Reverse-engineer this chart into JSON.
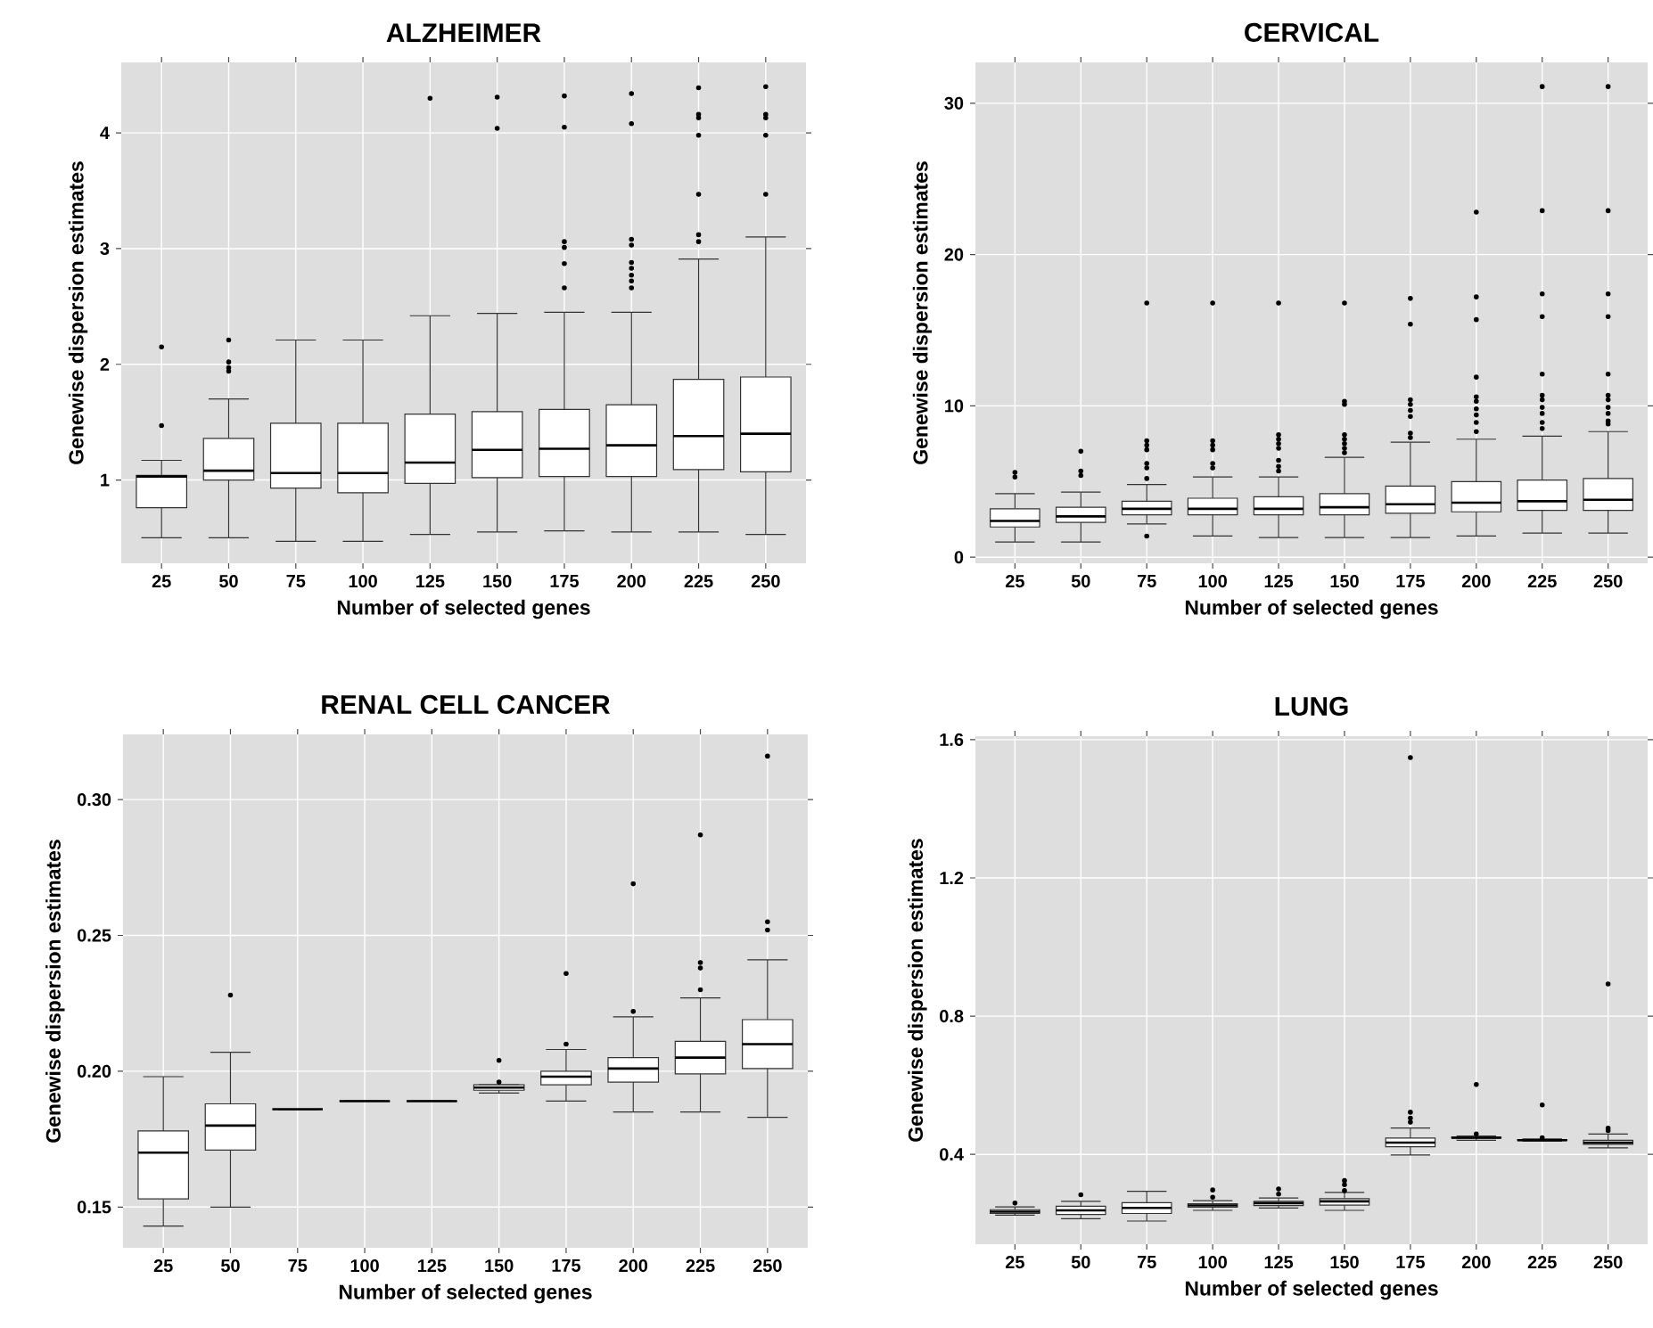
{
  "chart_data": [
    {
      "type": "box",
      "title": "ALZHEIMER",
      "xlabel": "Number of selected genes",
      "ylabel": "Genewise dispersion estimates",
      "categories": [
        "25",
        "50",
        "75",
        "100",
        "125",
        "150",
        "175",
        "200",
        "225",
        "250"
      ],
      "ylim": [
        0.28,
        4.61
      ],
      "yticks": [
        1,
        2,
        3,
        4
      ],
      "grid": true,
      "boxes": [
        {
          "low": 0.5,
          "q1": 0.76,
          "median": 1.03,
          "q3": 1.04,
          "high": 1.17,
          "outliers": [
            1.47,
            2.15
          ]
        },
        {
          "low": 0.5,
          "q1": 1.0,
          "median": 1.08,
          "q3": 1.36,
          "high": 1.7,
          "outliers": [
            1.94,
            1.97,
            2.02,
            2.21
          ]
        },
        {
          "low": 0.47,
          "q1": 0.93,
          "median": 1.06,
          "q3": 1.49,
          "high": 2.21
        },
        {
          "low": 0.47,
          "q1": 0.89,
          "median": 1.06,
          "q3": 1.49,
          "high": 2.21
        },
        {
          "low": 0.53,
          "q1": 0.97,
          "median": 1.15,
          "q3": 1.57,
          "high": 2.42,
          "outliers": [
            4.3
          ]
        },
        {
          "low": 0.55,
          "q1": 1.02,
          "median": 1.26,
          "q3": 1.59,
          "high": 2.44,
          "outliers": [
            4.04,
            4.31
          ]
        },
        {
          "low": 0.56,
          "q1": 1.03,
          "median": 1.27,
          "q3": 1.61,
          "high": 2.45,
          "outliers": [
            2.66,
            2.87,
            3.01,
            3.06,
            4.05,
            4.32
          ]
        },
        {
          "low": 0.55,
          "q1": 1.03,
          "median": 1.3,
          "q3": 1.65,
          "high": 2.45,
          "outliers": [
            2.66,
            2.72,
            2.77,
            2.83,
            2.88,
            3.03,
            3.08,
            4.08,
            4.34
          ]
        },
        {
          "low": 0.55,
          "q1": 1.09,
          "median": 1.38,
          "q3": 1.87,
          "high": 2.91,
          "outliers": [
            3.06,
            3.12,
            3.47,
            3.98,
            4.13,
            4.16,
            4.39
          ]
        },
        {
          "low": 0.53,
          "q1": 1.07,
          "median": 1.4,
          "q3": 1.89,
          "high": 3.1,
          "outliers": [
            3.47,
            3.98,
            4.13,
            4.16,
            4.4
          ]
        }
      ]
    },
    {
      "type": "box",
      "title": "CERVICAL",
      "xlabel": "Number of selected genes",
      "ylabel": "Genewise dispersion estimates",
      "categories": [
        "25",
        "50",
        "75",
        "100",
        "125",
        "150",
        "175",
        "200",
        "225",
        "250"
      ],
      "ylim": [
        -0.4,
        32.7
      ],
      "yticks": [
        0,
        10,
        20,
        30
      ],
      "grid": true,
      "boxes": [
        {
          "low": 1.0,
          "q1": 2.0,
          "median": 2.4,
          "q3": 3.2,
          "high": 4.2,
          "outliers": [
            5.3,
            5.6
          ]
        },
        {
          "low": 1.0,
          "q1": 2.3,
          "median": 2.7,
          "q3": 3.3,
          "high": 4.3,
          "outliers": [
            5.4,
            5.7,
            7.0
          ]
        },
        {
          "low": 2.2,
          "q1": 2.8,
          "median": 3.2,
          "q3": 3.7,
          "high": 4.8,
          "outliers": [
            1.4,
            5.2,
            5.9,
            6.2,
            7.1,
            7.4,
            7.7,
            16.8
          ]
        },
        {
          "low": 1.4,
          "q1": 2.8,
          "median": 3.2,
          "q3": 3.9,
          "high": 5.3,
          "outliers": [
            5.9,
            6.2,
            7.1,
            7.4,
            7.7,
            16.8
          ]
        },
        {
          "low": 1.3,
          "q1": 2.8,
          "median": 3.2,
          "q3": 4.0,
          "high": 5.3,
          "outliers": [
            5.7,
            6.0,
            6.4,
            7.2,
            7.5,
            7.8,
            8.1,
            16.8
          ]
        },
        {
          "low": 1.3,
          "q1": 2.8,
          "median": 3.3,
          "q3": 4.2,
          "high": 6.6,
          "outliers": [
            6.9,
            7.2,
            7.5,
            7.8,
            8.1,
            10.1,
            10.3,
            16.8
          ]
        },
        {
          "low": 1.3,
          "q1": 2.9,
          "median": 3.5,
          "q3": 4.7,
          "high": 7.6,
          "outliers": [
            7.9,
            8.2,
            9.3,
            9.7,
            10.1,
            10.4,
            15.4,
            17.1
          ]
        },
        {
          "low": 1.4,
          "q1": 3.0,
          "median": 3.6,
          "q3": 5.0,
          "high": 7.8,
          "outliers": [
            8.3,
            8.9,
            9.4,
            9.8,
            10.3,
            10.6,
            11.9,
            15.7,
            17.2,
            22.8
          ]
        },
        {
          "low": 1.6,
          "q1": 3.1,
          "median": 3.7,
          "q3": 5.1,
          "high": 8.0,
          "outliers": [
            8.5,
            8.9,
            9.5,
            9.9,
            10.4,
            10.7,
            12.1,
            15.9,
            17.4,
            22.9,
            31.1
          ]
        },
        {
          "low": 1.6,
          "q1": 3.1,
          "median": 3.8,
          "q3": 5.2,
          "high": 8.3,
          "outliers": [
            8.8,
            9.0,
            9.5,
            9.9,
            10.4,
            10.7,
            12.1,
            15.9,
            17.4,
            22.9,
            31.1
          ]
        }
      ]
    },
    {
      "type": "box",
      "title": "RENAL CELL CANCER",
      "xlabel": "Number of selected genes",
      "ylabel": "Genewise dispersion estimates",
      "categories": [
        "25",
        "50",
        "75",
        "100",
        "125",
        "150",
        "175",
        "200",
        "225",
        "250"
      ],
      "ylim": [
        0.135,
        0.324
      ],
      "yticks": [
        {
          "value": 0.15,
          "label": "0.15"
        },
        {
          "value": 0.2,
          "label": "0.20"
        },
        {
          "value": 0.25,
          "label": "0.25"
        },
        {
          "value": 0.3,
          "label": "0.30"
        }
      ],
      "grid": true,
      "boxes": [
        {
          "low": 0.143,
          "q1": 0.153,
          "median": 0.17,
          "q3": 0.178,
          "high": 0.198
        },
        {
          "low": 0.15,
          "q1": 0.171,
          "median": 0.18,
          "q3": 0.188,
          "high": 0.207,
          "outliers": [
            0.228
          ]
        },
        {
          "low": 0.186,
          "q1": 0.186,
          "median": 0.186,
          "q3": 0.186,
          "high": 0.186
        },
        {
          "low": 0.189,
          "q1": 0.189,
          "median": 0.189,
          "q3": 0.189,
          "high": 0.189
        },
        {
          "low": 0.189,
          "q1": 0.189,
          "median": 0.189,
          "q3": 0.189,
          "high": 0.189
        },
        {
          "low": 0.192,
          "q1": 0.193,
          "median": 0.194,
          "q3": 0.195,
          "high": 0.195,
          "outliers": [
            0.196,
            0.204
          ]
        },
        {
          "low": 0.189,
          "q1": 0.195,
          "median": 0.198,
          "q3": 0.2,
          "high": 0.208,
          "outliers": [
            0.21,
            0.236
          ]
        },
        {
          "low": 0.185,
          "q1": 0.196,
          "median": 0.201,
          "q3": 0.205,
          "high": 0.22,
          "outliers": [
            0.222,
            0.269
          ]
        },
        {
          "low": 0.185,
          "q1": 0.199,
          "median": 0.205,
          "q3": 0.211,
          "high": 0.227,
          "outliers": [
            0.23,
            0.238,
            0.24,
            0.287
          ]
        },
        {
          "low": 0.183,
          "q1": 0.201,
          "median": 0.21,
          "q3": 0.219,
          "high": 0.241,
          "outliers": [
            0.252,
            0.255,
            0.316
          ]
        }
      ]
    },
    {
      "type": "box",
      "title": "LUNG",
      "xlabel": "Number of selected genes",
      "ylabel": "Genewise dispersion estimates",
      "categories": [
        "25",
        "50",
        "75",
        "100",
        "125",
        "150",
        "175",
        "200",
        "225",
        "250"
      ],
      "ylim": [
        0.14,
        1.61
      ],
      "yticks": [
        0.4,
        0.8,
        1.2,
        1.6
      ],
      "grid": true,
      "boxes": [
        {
          "low": 0.224,
          "q1": 0.229,
          "median": 0.234,
          "q3": 0.24,
          "high": 0.248,
          "outliers": [
            0.259
          ]
        },
        {
          "low": 0.214,
          "q1": 0.226,
          "median": 0.238,
          "q3": 0.25,
          "high": 0.264,
          "outliers": [
            0.283
          ]
        },
        {
          "low": 0.207,
          "q1": 0.229,
          "median": 0.245,
          "q3": 0.26,
          "high": 0.293
        },
        {
          "low": 0.238,
          "q1": 0.247,
          "median": 0.252,
          "q3": 0.257,
          "high": 0.266,
          "outliers": [
            0.276,
            0.297
          ]
        },
        {
          "low": 0.245,
          "q1": 0.252,
          "median": 0.259,
          "q3": 0.264,
          "high": 0.274,
          "outliers": [
            0.285,
            0.3
          ]
        },
        {
          "low": 0.238,
          "q1": 0.253,
          "median": 0.264,
          "q3": 0.272,
          "high": 0.29,
          "outliers": [
            0.295,
            0.312,
            0.324
          ]
        },
        {
          "low": 0.398,
          "q1": 0.422,
          "median": 0.434,
          "q3": 0.447,
          "high": 0.476,
          "outliers": [
            0.493,
            0.505,
            0.522,
            1.548
          ]
        },
        {
          "low": 0.441,
          "q1": 0.447,
          "median": 0.448,
          "q3": 0.45,
          "high": 0.453,
          "outliers": [
            0.459,
            0.602
          ]
        },
        {
          "low": 0.438,
          "q1": 0.44,
          "median": 0.441,
          "q3": 0.443,
          "high": 0.445,
          "outliers": [
            0.448,
            0.543
          ]
        },
        {
          "low": 0.419,
          "q1": 0.429,
          "median": 0.434,
          "q3": 0.441,
          "high": 0.459,
          "outliers": [
            0.469,
            0.476,
            0.893
          ]
        }
      ]
    }
  ]
}
